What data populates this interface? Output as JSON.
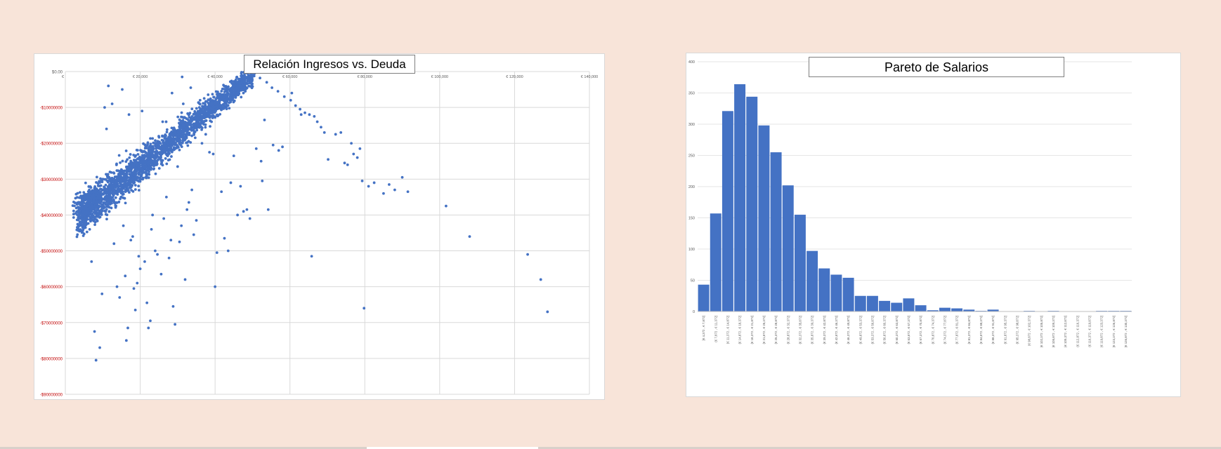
{
  "colors": {
    "background": "#f8e4d9",
    "series": "#4472c4",
    "negative_tick": "#c00000",
    "grid": "#d9d9d9"
  },
  "chart_data": [
    {
      "type": "scatter",
      "title": "Relación Ingresos vs. Deuda",
      "xlabel": "",
      "ylabel": "",
      "xlim": [
        0,
        140000
      ],
      "ylim": [
        -90000000,
        0
      ],
      "grid": true,
      "x_ticks": [
        0,
        20000,
        40000,
        60000,
        80000,
        100000,
        120000,
        140000
      ],
      "x_tick_labels": [
        "€",
        "€ 20,000",
        "€ 40,000",
        "€ 60,000",
        "€ 80,000",
        "€ 100,000",
        "€ 120,000",
        "€ 140,000"
      ],
      "y_ticks": [
        0,
        -10000000,
        -20000000,
        -30000000,
        -40000000,
        -50000000,
        -60000000,
        -70000000,
        -80000000,
        -90000000
      ],
      "y_tick_labels": [
        "$0.00",
        "-$10000000",
        "-$20000000",
        "-$30000000",
        "-$40000000",
        "-$50000000",
        "-$60000000",
        "-$70000000",
        "-$80000000",
        "-$90000000"
      ],
      "dense_band": {
        "from": [
          4000,
          -40000000
        ],
        "to": [
          50000,
          -1000000
        ],
        "approx_count": 2600
      },
      "points": [
        [
          5000,
          -38000000
        ],
        [
          6500,
          -44000000
        ],
        [
          8000,
          -42000000
        ],
        [
          7000,
          -53000000
        ],
        [
          7800,
          -72500000
        ],
        [
          8200,
          -80500000
        ],
        [
          9200,
          -77000000
        ],
        [
          9800,
          -62000000
        ],
        [
          10500,
          -10000000
        ],
        [
          11000,
          -16000000
        ],
        [
          11500,
          -4000000
        ],
        [
          12500,
          -9000000
        ],
        [
          13000,
          -48000000
        ],
        [
          13800,
          -60000000
        ],
        [
          14500,
          -63000000
        ],
        [
          15200,
          -5000000
        ],
        [
          15500,
          -43000000
        ],
        [
          16000,
          -57000000
        ],
        [
          16300,
          -75000000
        ],
        [
          16700,
          -71500000
        ],
        [
          17000,
          -12000000
        ],
        [
          17500,
          -47000000
        ],
        [
          18000,
          -46000000
        ],
        [
          18300,
          -60500000
        ],
        [
          18700,
          -66500000
        ],
        [
          19200,
          -59000000
        ],
        [
          19600,
          -51500000
        ],
        [
          20000,
          -55000000
        ],
        [
          20500,
          -11000000
        ],
        [
          20800,
          -26000000
        ],
        [
          21200,
          -53000000
        ],
        [
          21800,
          -64500000
        ],
        [
          22200,
          -71500000
        ],
        [
          22700,
          -69500000
        ],
        [
          23000,
          -44000000
        ],
        [
          23300,
          -40000000
        ],
        [
          24000,
          -50000000
        ],
        [
          24600,
          -51000000
        ],
        [
          25100,
          -27000000
        ],
        [
          25600,
          -56500000
        ],
        [
          26300,
          -41000000
        ],
        [
          27000,
          -35000000
        ],
        [
          27700,
          -52000000
        ],
        [
          28200,
          -47000000
        ],
        [
          28800,
          -65500000
        ],
        [
          29300,
          -70500000
        ],
        [
          30000,
          -26500000
        ],
        [
          30500,
          -47500000
        ],
        [
          31000,
          -43000000
        ],
        [
          31500,
          -9000000
        ],
        [
          32000,
          -58000000
        ],
        [
          32500,
          -38500000
        ],
        [
          33000,
          -36500000
        ],
        [
          33800,
          -33000000
        ],
        [
          34300,
          -45500000
        ],
        [
          35000,
          -41500000
        ],
        [
          35800,
          -10000000
        ],
        [
          36500,
          -20000000
        ],
        [
          37500,
          -17500000
        ],
        [
          38500,
          -22500000
        ],
        [
          39500,
          -23000000
        ],
        [
          40000,
          -60000000
        ],
        [
          40500,
          -50500000
        ],
        [
          41700,
          -33500000
        ],
        [
          42500,
          -46500000
        ],
        [
          43500,
          -50000000
        ],
        [
          44200,
          -31000000
        ],
        [
          45000,
          -23500000
        ],
        [
          46000,
          -40000000
        ],
        [
          46800,
          -32000000
        ],
        [
          47600,
          -39000000
        ],
        [
          48500,
          -38500000
        ],
        [
          49300,
          -41000000
        ],
        [
          51000,
          -21500000
        ],
        [
          52300,
          -25000000
        ],
        [
          52600,
          -30500000
        ],
        [
          53200,
          -13500000
        ],
        [
          54200,
          -38500000
        ],
        [
          55500,
          -20500000
        ],
        [
          57000,
          -22000000
        ],
        [
          58000,
          -21000000
        ],
        [
          26000,
          -14000000
        ],
        [
          28500,
          -6000000
        ],
        [
          31200,
          -1500000
        ],
        [
          33500,
          -4500000
        ],
        [
          36000,
          -8000000
        ],
        [
          38000,
          -11500000
        ],
        [
          47000,
          -500000
        ],
        [
          48800,
          -300000
        ],
        [
          50500,
          -600000
        ],
        [
          52000,
          -1800000
        ],
        [
          53800,
          -3000000
        ],
        [
          55200,
          -4500000
        ],
        [
          56800,
          -5500000
        ],
        [
          58500,
          -7000000
        ],
        [
          60200,
          -8000000
        ],
        [
          61500,
          -9500000
        ],
        [
          62700,
          -10500000
        ],
        [
          64000,
          -11500000
        ],
        [
          65200,
          -12000000
        ],
        [
          66500,
          -12500000
        ],
        [
          67300,
          -14000000
        ],
        [
          68300,
          -15500000
        ],
        [
          69200,
          -17000000
        ],
        [
          70200,
          -24500000
        ],
        [
          72200,
          -17500000
        ],
        [
          73600,
          -17000000
        ],
        [
          74600,
          -25500000
        ],
        [
          75400,
          -26000000
        ],
        [
          76400,
          -20000000
        ],
        [
          77000,
          -23000000
        ],
        [
          78000,
          -24000000
        ],
        [
          78700,
          -21500000
        ],
        [
          79300,
          -30500000
        ],
        [
          79800,
          -66000000
        ],
        [
          81000,
          -32000000
        ],
        [
          82500,
          -31000000
        ],
        [
          85000,
          -34000000
        ],
        [
          86500,
          -31500000
        ],
        [
          88000,
          -33000000
        ],
        [
          90000,
          -29500000
        ],
        [
          91500,
          -33500000
        ],
        [
          101700,
          -37500000
        ],
        [
          108000,
          -46000000
        ],
        [
          123500,
          -51000000
        ],
        [
          127000,
          -58000000
        ],
        [
          128800,
          -67000000
        ],
        [
          65800,
          -51500000
        ],
        [
          60500,
          -6000000
        ],
        [
          63000,
          -12000000
        ]
      ]
    },
    {
      "type": "bar",
      "title": "Pareto de Salarios",
      "xlabel": "",
      "ylabel": "",
      "ylim": [
        0,
        400
      ],
      "y_ticks": [
        0,
        50,
        100,
        150,
        200,
        250,
        300,
        350,
        400
      ],
      "grid": true,
      "categories": [
        "[€ 4,372 , € 7,872]",
        "(€ 7,872 , € 11,372]",
        "(€ 11,372 , € 14,872]",
        "(€ 14,872 , € 18,372]",
        "(€ 18,372 , € 21,872]",
        "(€ 21,872 , € 25,372]",
        "(€ 25,372 , € 28,872]",
        "(€ 28,872 , € 32,372]",
        "(€ 32,372 , € 35,872]",
        "(€ 35,872 , € 39,372]",
        "(€ 39,372 , € 42,872]",
        "(€ 42,872 , € 46,372]",
        "(€ 46,372 , € 49,872]",
        "(€ 49,872 , € 53,372]",
        "(€ 53,372 , € 56,872]",
        "(€ 56,872 , € 60,372]",
        "(€ 60,372 , € 63,872]",
        "(€ 63,872 , € 67,372]",
        "(€ 67,372 , € 70,872]",
        "(€ 70,872 , € 74,372]",
        "(€ 74,372 , € 77,872]",
        "(€ 77,872 , € 81,372]",
        "(€ 81,372 , € 84,872]",
        "(€ 84,872 , € 88,372]",
        "(€ 88,372 , € 91,872]",
        "(€ 91,872 , € 95,372]",
        "(€ 95,372 , € 98,872]",
        "(€ 98,872 , € 102,372]",
        "(€ 102,372 , € 105,872]",
        "(€ 105,872 , € 109,372]",
        "(€ 109,372 , € 112,872]",
        "(€ 112,872 , € 116,372]",
        "(€ 116,372 , € 119,872]",
        "(€ 119,872 , € 123,372]",
        "(€ 123,372 , € 126,872]",
        "(€ 126,872 , € 130,372]"
      ],
      "values": [
        43,
        157,
        321,
        364,
        344,
        298,
        255,
        202,
        155,
        97,
        69,
        59,
        54,
        25,
        25,
        17,
        14,
        21,
        10,
        2,
        6,
        5,
        3,
        1,
        3,
        0,
        0,
        1,
        0,
        1,
        0,
        0,
        0,
        1,
        1,
        1
      ]
    }
  ]
}
